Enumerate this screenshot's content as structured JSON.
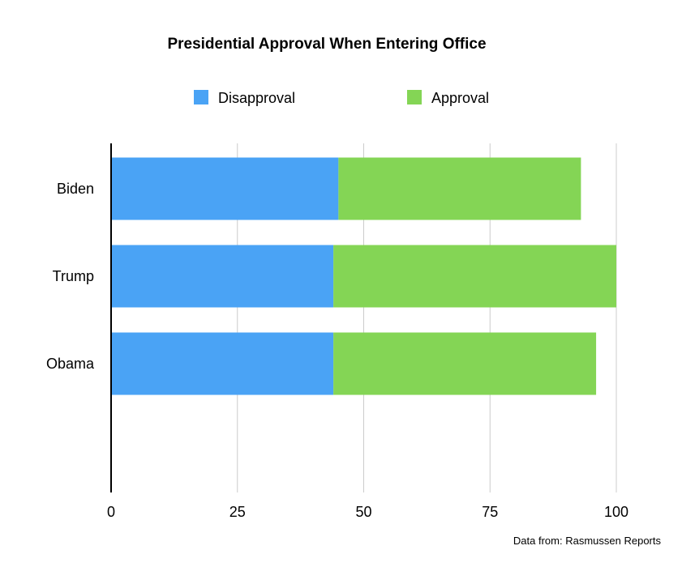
{
  "chart_data": {
    "type": "bar",
    "orientation": "horizontal",
    "stacked": true,
    "title": "Presidential Approval When Entering Office",
    "categories": [
      "Biden",
      "Trump",
      "Obama"
    ],
    "series": [
      {
        "name": "Disapproval",
        "color": "#4aa3f5",
        "values": [
          45,
          44,
          44
        ]
      },
      {
        "name": "Approval",
        "color": "#84d555",
        "values": [
          48,
          56,
          52
        ]
      }
    ],
    "xlim": [
      0,
      100
    ],
    "xticks": [
      "0",
      "25",
      "50",
      "75",
      "100"
    ],
    "grid": true,
    "legend_position": "top"
  },
  "source_note": "Data from: Rasmussen Reports"
}
